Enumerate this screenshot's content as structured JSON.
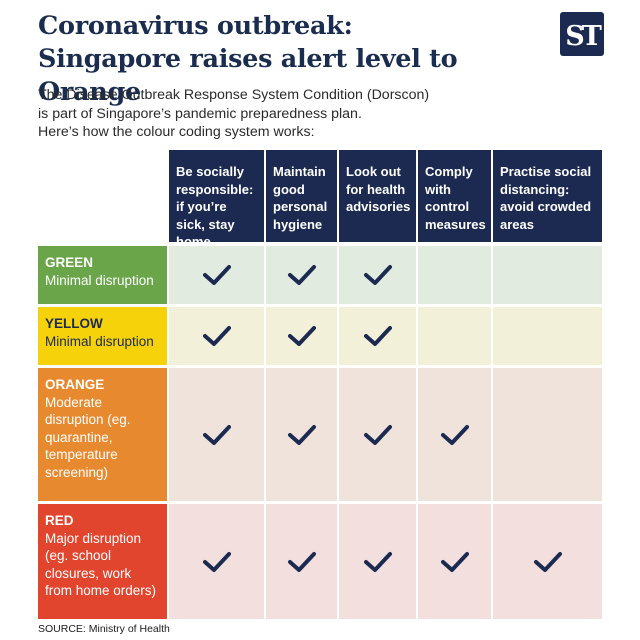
{
  "title_line1": "Coronavirus outbreak:",
  "title_line2": "Singapore raises alert level to Orange",
  "subtitle_line1": "The Disease Outbreak Response System Condition (Dorscon)",
  "subtitle_line2": "is part of Singapore’s pandemic preparedness plan.",
  "subtitle_line3": "Here’s how the colour coding system works:",
  "logo_text": "ST",
  "columns": [
    "Be socially responsible: if you’re sick, stay home",
    "Maintain good personal hygiene",
    "Look out for health advisories",
    "Comply with control measures",
    "Practise social distancing: avoid crowded areas"
  ],
  "levels": [
    {
      "name": "GREEN",
      "description": "Minimal disruption",
      "checks": [
        true,
        true,
        true,
        false,
        false
      ],
      "color": "#6aa54a",
      "row_color": "#e2ebe0",
      "name_color": "#ffffff",
      "desc_color": "#ffffff"
    },
    {
      "name": "YELLOW",
      "description": "Minimal disruption",
      "checks": [
        true,
        true,
        true,
        false,
        false
      ],
      "color": "#f5d20a",
      "row_color": "#f3f0da",
      "name_color": "#1c2a52",
      "desc_color": "#1c2a52"
    },
    {
      "name": "ORANGE",
      "description": "Moderate disruption (eg. quarantine, temperature screening)",
      "checks": [
        true,
        true,
        true,
        true,
        false
      ],
      "color": "#e7892e",
      "row_color": "#f0e3dc",
      "name_color": "#ffffff",
      "desc_color": "#ffffff"
    },
    {
      "name": "RED",
      "description": "Major disruption (eg. school closures, work from home orders)",
      "checks": [
        true,
        true,
        true,
        true,
        true
      ],
      "color": "#e1452e",
      "row_color": "#f3e0de",
      "name_color": "#ffffff",
      "desc_color": "#ffffff"
    }
  ],
  "source": "SOURCE: Ministry of Health",
  "colors": {
    "navy": "#1c2a52",
    "check": "#1c2a52"
  },
  "icons": {
    "check": "check-icon",
    "logo": "st-logo-icon"
  }
}
